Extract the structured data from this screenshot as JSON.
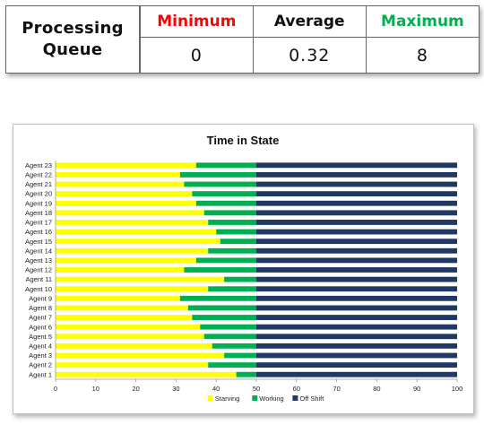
{
  "stats": {
    "label_line1": "Processing",
    "label_line2": "Queue",
    "headers": {
      "minimum": "Minimum",
      "average": "Average",
      "maximum": "Maximum"
    },
    "values": {
      "minimum": "0",
      "average": "0.32",
      "maximum": "8"
    },
    "colors": {
      "minimum": "#ff0000",
      "average": "#111111",
      "maximum": "#00b050"
    }
  },
  "chart_data": {
    "type": "bar",
    "orientation": "horizontal",
    "stacked": true,
    "title": "Time in State",
    "categories": [
      "Agent 23",
      "Agent 22",
      "Agent 21",
      "Agent 20",
      "Agent 19",
      "Agent 18",
      "Agent 17",
      "Agent 16",
      "Agent 15",
      "Agent 14",
      "Agent 13",
      "Agent 12",
      "Agent 11",
      "Agent 10",
      "Agent 9",
      "Agent 8",
      "Agent 7",
      "Agent 6",
      "Agent 5",
      "Agent 4",
      "Agent 3",
      "Agent 2",
      "Agent 1"
    ],
    "series": [
      {
        "name": "Starving",
        "color": "#ffff00",
        "values": [
          35,
          31,
          32,
          34,
          35,
          37,
          38,
          40,
          41,
          38,
          35,
          32,
          42,
          38,
          31,
          33,
          34,
          36,
          37,
          39,
          42,
          38,
          45
        ]
      },
      {
        "name": "Working",
        "color": "#00b050",
        "values": [
          15,
          19,
          18,
          16,
          15,
          13,
          12,
          10,
          9,
          12,
          15,
          18,
          8,
          12,
          19,
          17,
          16,
          14,
          13,
          11,
          8,
          12,
          5
        ]
      },
      {
        "name": "Off Shift",
        "color": "#1f3864",
        "values": [
          50,
          50,
          50,
          50,
          50,
          50,
          50,
          50,
          50,
          50,
          50,
          50,
          50,
          50,
          50,
          50,
          50,
          50,
          50,
          50,
          50,
          50,
          50
        ]
      }
    ],
    "xlim": [
      0,
      100
    ],
    "x_ticks": [
      "0",
      "10",
      "20",
      "30",
      "40",
      "50",
      "60",
      "70",
      "80",
      "90",
      "100"
    ],
    "xlabel": "",
    "ylabel": "",
    "grid": false,
    "legend_position": "bottom"
  }
}
